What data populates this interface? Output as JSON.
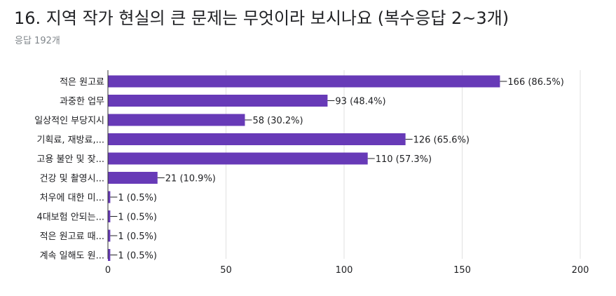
{
  "question": {
    "title": "16.  지역 작가 현실의 큰 문제는 무엇이라 보시나요 (복수응답 2~3개)",
    "response_count": "응답 192개"
  },
  "colors": {
    "bar": "#673ab7",
    "text": "#202124",
    "muted": "#80868b",
    "axis": "#333333",
    "grid": "#e0e0e0"
  },
  "chart_data": {
    "type": "bar",
    "orientation": "horizontal",
    "categories": [
      "적은 원고료",
      "과중한 업무",
      "일상적인 부당지시",
      "기획료, 재방료,...",
      "고용 불안 및 잦...",
      "건강 및 촬영시...",
      "처우에 대한 미...",
      "4대보험 안되는...",
      "적은 원고료 때...",
      "계속 일해도 원..."
    ],
    "values": [
      166,
      93,
      58,
      126,
      110,
      21,
      1,
      1,
      1,
      1
    ],
    "data_labels": [
      "166 (86.5%)",
      "93 (48.4%)",
      "58 (30.2%)",
      "126 (65.6%)",
      "110 (57.3%)",
      "21 (10.9%)",
      "1 (0.5%)",
      "1 (0.5%)",
      "1 (0.5%)",
      "1 (0.5%)"
    ],
    "xlim": [
      0,
      200
    ],
    "xticks": [
      0,
      50,
      100,
      150,
      200
    ],
    "xlabel": "",
    "ylabel": "",
    "grid": true,
    "legend": "none"
  }
}
